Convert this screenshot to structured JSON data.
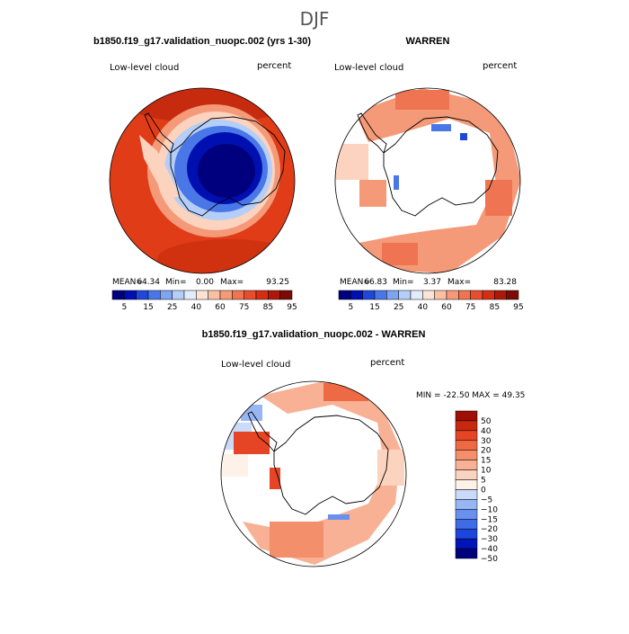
{
  "page_title": "DJF",
  "panels": {
    "model": {
      "title": "b1850.f19_g17.validation_nuopc.002 (yrs 1-30)",
      "variable": "Low-level cloud",
      "units": "percent",
      "stats": {
        "mean_label": "MEAN=",
        "mean": "64.34",
        "min_label": "Min=",
        "min": "0.00",
        "max_label": "Max=",
        "max": "93.25"
      },
      "colorbar_labels": [
        "5",
        "15",
        "25",
        "40",
        "60",
        "75",
        "85",
        "95"
      ]
    },
    "obs": {
      "title": "WARREN",
      "variable": "Low-level cloud",
      "units": "percent",
      "stats": {
        "mean_label": "MEAN=",
        "mean": "66.83",
        "min_label": "Min=",
        "min": "3.37",
        "max_label": "Max=",
        "max": "83.28"
      },
      "colorbar_labels": [
        "5",
        "15",
        "25",
        "40",
        "60",
        "75",
        "85",
        "95"
      ]
    },
    "diff": {
      "title": "b1850.f19_g17.validation_nuopc.002 - WARREN",
      "variable": "Low-level cloud",
      "units": "percent",
      "minmax": "MIN = -22.50 MAX =  49.35",
      "colorbar_labels": [
        "50",
        "40",
        "30",
        "20",
        "15",
        "10",
        "5",
        "0",
        "−5",
        "−10",
        "−15",
        "−20",
        "−30",
        "−40",
        "−50"
      ]
    }
  },
  "colors": {
    "abs_scale": [
      "#00007f",
      "#0010b0",
      "#1f48d8",
      "#4a77e8",
      "#7fa4f2",
      "#b4cef8",
      "#e2ecfb",
      "#fbe4d5",
      "#f9c0a4",
      "#f59a78",
      "#ef7452",
      "#e74e2e",
      "#d42f14",
      "#ad1908",
      "#7a0c05"
    ],
    "diff_scale": [
      "#00007f",
      "#0015b8",
      "#1d46dc",
      "#3f6ce6",
      "#6990ee",
      "#98b5f4",
      "#c9dbf9",
      "#fdf1e8",
      "#fbd3be",
      "#f8b194",
      "#f48f6b",
      "#ee6a45",
      "#e54524",
      "#c92810",
      "#a00f03"
    ]
  }
}
